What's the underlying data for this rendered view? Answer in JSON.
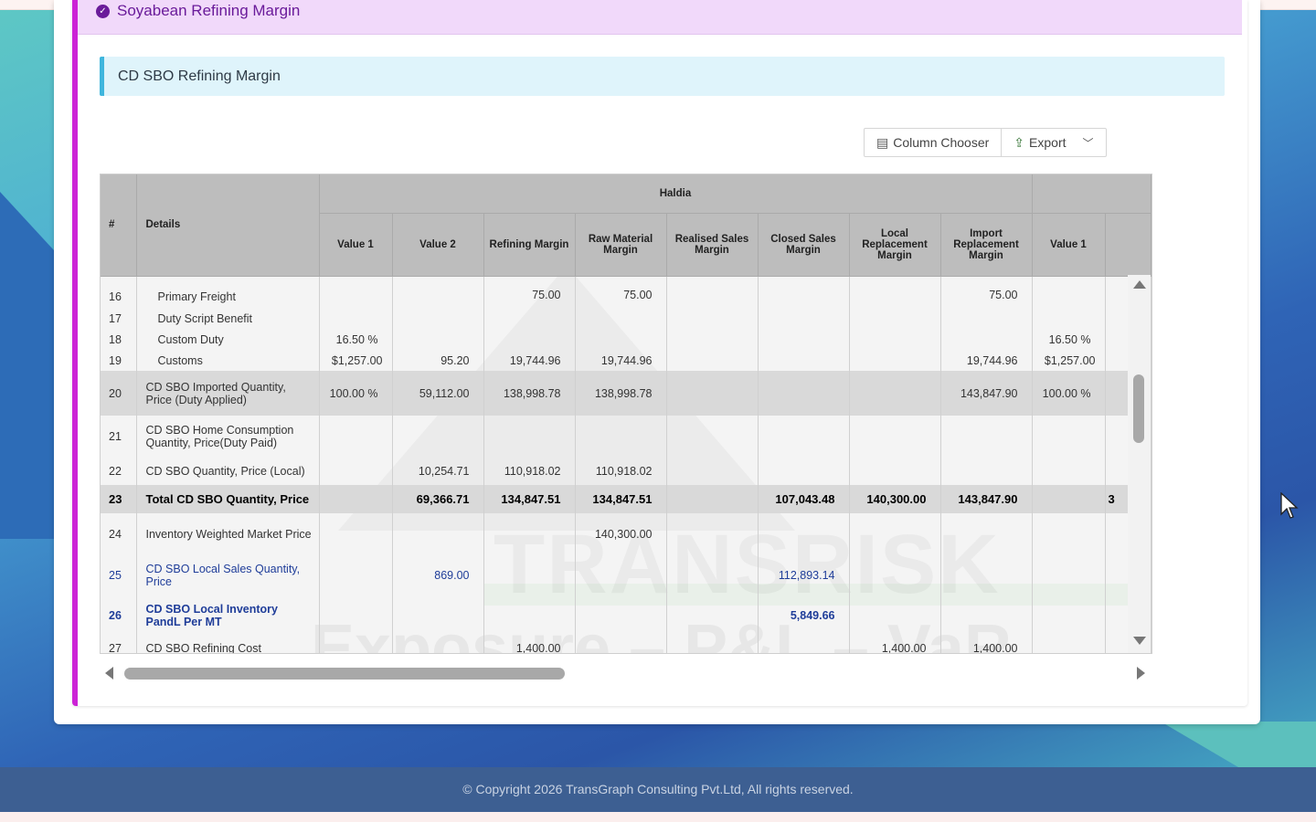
{
  "panel": {
    "title": "Soyabean Refining Margin"
  },
  "section": {
    "title": "CD SBO Refining Margin"
  },
  "toolbar": {
    "column_chooser": "Column Chooser",
    "export": "Export"
  },
  "grid": {
    "col_hash": "#",
    "col_details": "Details",
    "group": "Haldia",
    "columns": [
      "Value 1",
      "Value 2",
      "Refining Margin",
      "Raw Material Margin",
      "Realised Sales Margin",
      "Closed Sales Margin",
      "Local Replacement Margin",
      "Import Replacement Margin",
      "Value 1"
    ],
    "rows": [
      {
        "idx": "16",
        "details": "Primary Freight",
        "v1": "",
        "v2": "",
        "rm": "75.00",
        "rmm": "75.00",
        "rsm": "",
        "csm": "",
        "lrm": "",
        "irm": "75.00",
        "v1b": ""
      },
      {
        "idx": "17",
        "details": "Duty Script Benefit",
        "v1": "",
        "v2": "",
        "rm": "",
        "rmm": "",
        "rsm": "",
        "csm": "",
        "lrm": "",
        "irm": "",
        "v1b": ""
      },
      {
        "idx": "18",
        "details": "Custom Duty",
        "v1": "16.50 %",
        "v2": "",
        "rm": "",
        "rmm": "",
        "rsm": "",
        "csm": "",
        "lrm": "",
        "irm": "",
        "v1b": "16.50 %"
      },
      {
        "idx": "19",
        "details": "Customs",
        "v1": "$1,257.00",
        "v2": "95.20",
        "rm": "19,744.96",
        "rmm": "19,744.96",
        "rsm": "",
        "csm": "",
        "lrm": "",
        "irm": "19,744.96",
        "v1b": "$1,257.00"
      },
      {
        "idx": "20",
        "details": "CD SBO Imported Quantity, Price (Duty Applied)",
        "v1": "100.00 %",
        "v2": "59,112.00",
        "rm": "138,998.78",
        "rmm": "138,998.78",
        "rsm": "",
        "csm": "",
        "lrm": "",
        "irm": "143,847.90",
        "v1b": "100.00 %"
      },
      {
        "idx": "21",
        "details": "CD SBO Home Consumption Quantity, Price(Duty Paid)",
        "v1": "",
        "v2": "",
        "rm": "",
        "rmm": "",
        "rsm": "",
        "csm": "",
        "lrm": "",
        "irm": "",
        "v1b": ""
      },
      {
        "idx": "22",
        "details": "CD SBO Quantity, Price (Local)",
        "v1": "",
        "v2": "10,254.71",
        "rm": "110,918.02",
        "rmm": "110,918.02",
        "rsm": "",
        "csm": "",
        "lrm": "",
        "irm": "",
        "v1b": ""
      },
      {
        "idx": "23",
        "details": "Total CD SBO Quantity, Price",
        "v1": "",
        "v2": "69,366.71",
        "rm": "134,847.51",
        "rmm": "134,847.51",
        "rsm": "",
        "csm": "107,043.48",
        "lrm": "140,300.00",
        "irm": "143,847.90",
        "v1b": "3"
      },
      {
        "idx": "24",
        "details": "Inventory Weighted Market Price",
        "v1": "",
        "v2": "",
        "rm": "",
        "rmm": "140,300.00",
        "rsm": "",
        "csm": "",
        "lrm": "",
        "irm": "",
        "v1b": ""
      },
      {
        "idx": "25",
        "details": "CD SBO Local Sales Quantity, Price",
        "v1": "",
        "v2": "869.00",
        "rm": "",
        "rmm": "",
        "rsm": "",
        "csm": "112,893.14",
        "lrm": "",
        "irm": "",
        "v1b": ""
      },
      {
        "idx": "26",
        "details": "CD SBO Local Inventory PandL Per MT",
        "v1": "",
        "v2": "",
        "rm": "",
        "rmm": "",
        "rsm": "",
        "csm": "5,849.66",
        "lrm": "",
        "irm": "",
        "v1b": ""
      },
      {
        "idx": "27",
        "details": "CD SBO Refining Cost",
        "v1": "",
        "v2": "",
        "rm": "1,400.00",
        "rmm": "",
        "rsm": "",
        "csm": "",
        "lrm": "1,400.00",
        "irm": "1,400.00",
        "v1b": ""
      }
    ]
  },
  "watermark": {
    "line1": "TRANSRISK",
    "line2": "Exposure – P&L – VaR"
  },
  "footer": {
    "copyright": "© Copyright 2026 TransGraph Consulting Pvt.Ltd, All rights reserved."
  },
  "colors": {
    "accent": "#cc22d6",
    "panel_header": "#f1d9fa",
    "section_bar": "#3fb6dd",
    "link_blue": "#1f3d99",
    "footer": "#3d5f92"
  }
}
